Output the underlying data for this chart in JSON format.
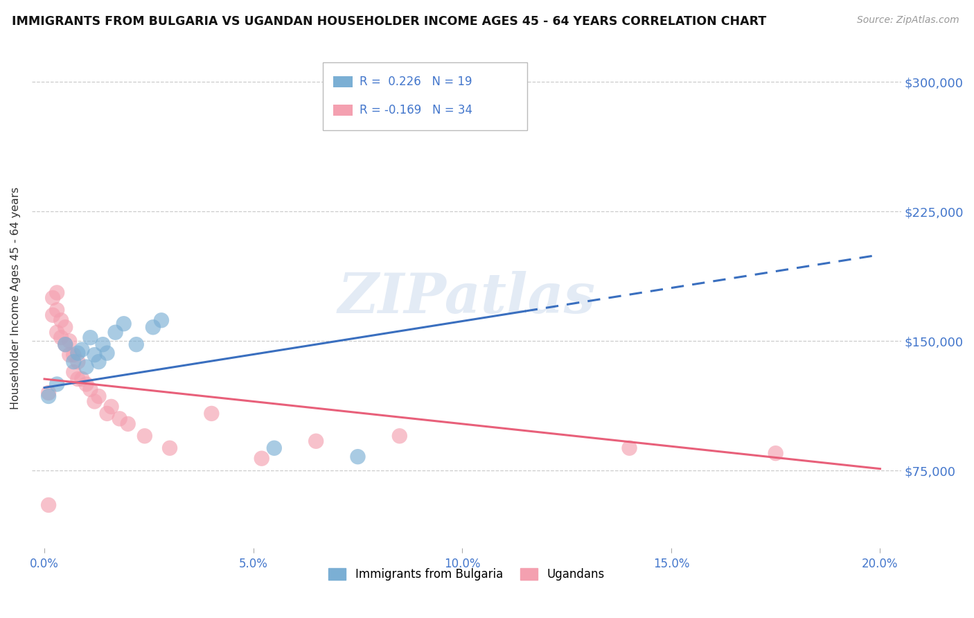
{
  "title": "IMMIGRANTS FROM BULGARIA VS UGANDAN HOUSEHOLDER INCOME AGES 45 - 64 YEARS CORRELATION CHART",
  "source": "Source: ZipAtlas.com",
  "ylabel": "Householder Income Ages 45 - 64 years",
  "xlabel_ticks": [
    "0.0%",
    "5.0%",
    "10.0%",
    "15.0%",
    "20.0%"
  ],
  "xlabel_vals": [
    0.0,
    0.05,
    0.1,
    0.15,
    0.2
  ],
  "ytick_labels": [
    "$75,000",
    "$150,000",
    "$225,000",
    "$300,000"
  ],
  "ytick_vals": [
    75000,
    150000,
    225000,
    300000
  ],
  "ylim": [
    30000,
    320000
  ],
  "xlim": [
    -0.003,
    0.205
  ],
  "legend_bulgaria_r": "R =  0.226",
  "legend_bulgaria_n": "N = 19",
  "legend_ugandan_r": "R = -0.169",
  "legend_ugandan_n": "N = 34",
  "color_bulgaria": "#7BAFD4",
  "color_ugandan": "#F4A0B0",
  "color_line_bulgaria": "#3A6FBF",
  "color_line_ugandan": "#E8607A",
  "color_tick_labels": "#4477CC",
  "watermark_text": "ZIPatlas",
  "background_color": "#FFFFFF",
  "grid_color": "#CCCCCC",
  "bulgaria_x": [
    0.001,
    0.003,
    0.005,
    0.007,
    0.008,
    0.009,
    0.01,
    0.011,
    0.012,
    0.013,
    0.014,
    0.015,
    0.017,
    0.019,
    0.022,
    0.026,
    0.028,
    0.055,
    0.075
  ],
  "bulgaria_y": [
    118000,
    125000,
    148000,
    138000,
    143000,
    145000,
    135000,
    152000,
    142000,
    138000,
    148000,
    143000,
    155000,
    160000,
    148000,
    158000,
    162000,
    88000,
    83000
  ],
  "ugandan_x": [
    0.001,
    0.001,
    0.002,
    0.002,
    0.003,
    0.003,
    0.003,
    0.004,
    0.004,
    0.005,
    0.005,
    0.006,
    0.006,
    0.007,
    0.007,
    0.008,
    0.008,
    0.009,
    0.01,
    0.011,
    0.012,
    0.013,
    0.015,
    0.016,
    0.018,
    0.02,
    0.024,
    0.03,
    0.04,
    0.052,
    0.065,
    0.085,
    0.14,
    0.175
  ],
  "ugandan_y": [
    55000,
    120000,
    165000,
    175000,
    155000,
    168000,
    178000,
    152000,
    162000,
    148000,
    158000,
    142000,
    150000,
    132000,
    142000,
    128000,
    138000,
    128000,
    125000,
    122000,
    115000,
    118000,
    108000,
    112000,
    105000,
    102000,
    95000,
    88000,
    108000,
    82000,
    92000,
    95000,
    88000,
    85000
  ],
  "line_bulgaria_x0": 0.0,
  "line_bulgaria_y0": 123000,
  "line_bulgaria_x1": 0.2,
  "line_bulgaria_y1": 200000,
  "line_ugandan_x0": 0.0,
  "line_ugandan_y0": 128000,
  "line_ugandan_x1": 0.2,
  "line_ugandan_y1": 76000,
  "line_bulgaria_dashed_x0": 0.13,
  "line_bulgaria_dashed_y0": 175000,
  "line_bulgaria_dashed_x1": 0.205,
  "line_bulgaria_dashed_y1": 205000
}
